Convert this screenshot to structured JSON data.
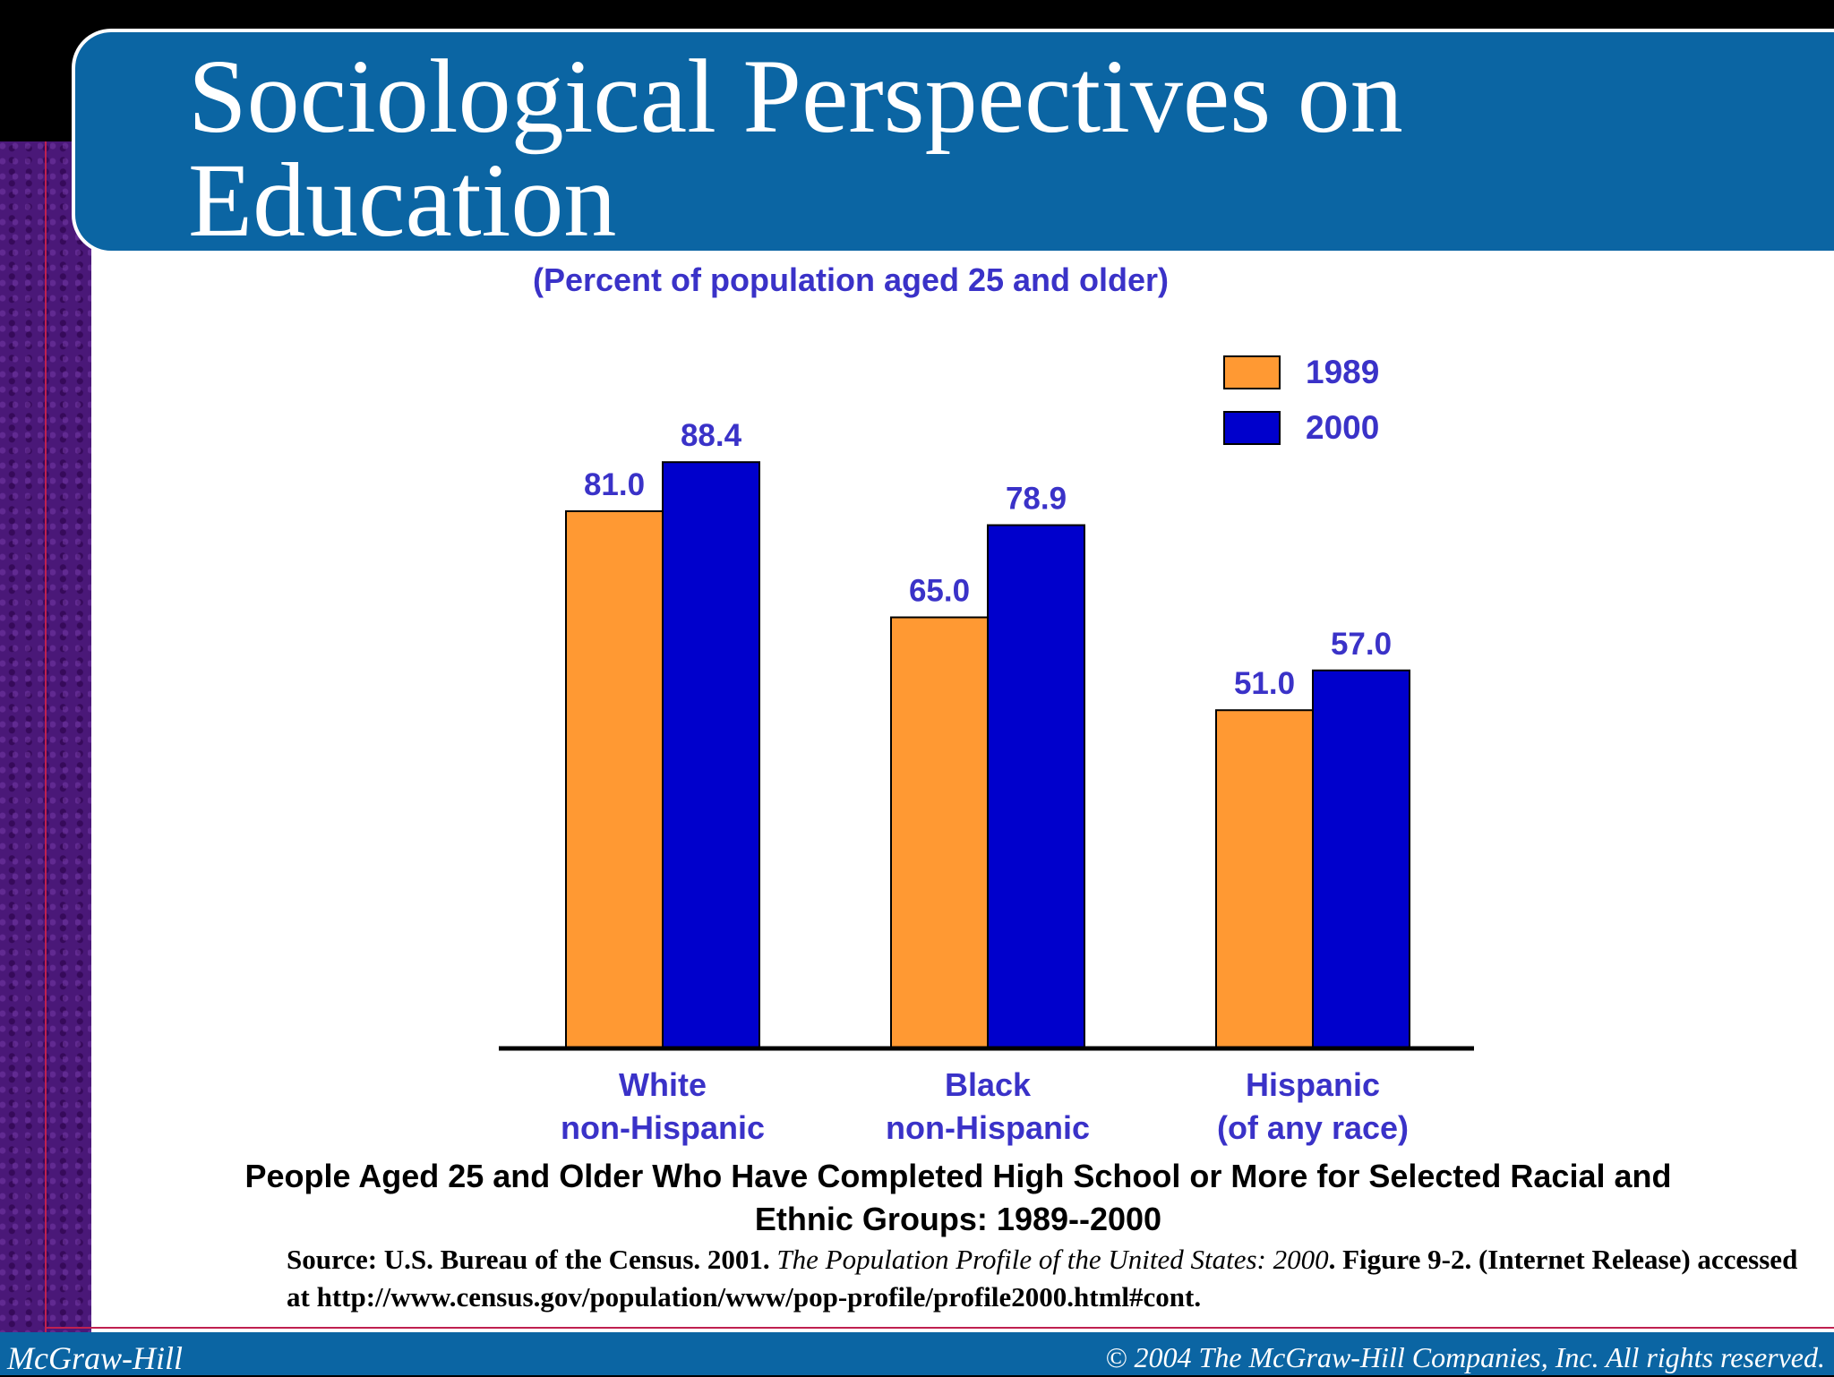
{
  "slide": {
    "title": "Sociological Perspectives on Education",
    "footer_left": "McGraw-Hill",
    "footer_right": "© 2004 The McGraw-Hill Companies, Inc. All rights reserved."
  },
  "colors": {
    "series_1989": "#ff9933",
    "series_2000": "#0000cc",
    "label_text": "#3a32c8",
    "title_bar": "#0b65a3"
  },
  "chart_data": {
    "type": "bar",
    "subtitle": "(Percent of population aged 25 and older)",
    "categories": [
      [
        "White",
        "non-Hispanic"
      ],
      [
        "Black",
        "non-Hispanic"
      ],
      [
        "Hispanic",
        "(of any race)"
      ]
    ],
    "series": [
      {
        "name": "1989",
        "values": [
          81.0,
          65.0,
          51.0
        ],
        "labels": [
          "81.0",
          "65.0",
          "51.0"
        ]
      },
      {
        "name": "2000",
        "values": [
          88.4,
          78.9,
          57.0
        ],
        "labels": [
          "88.4",
          "78.9",
          "57.0"
        ]
      }
    ],
    "ylim": [
      0,
      100
    ],
    "legend": "top-right",
    "grid": false,
    "caption": "People Aged 25 and Older Who Have Completed High School or More for Selected Racial and Ethnic Groups: 1989--2000",
    "source_prefix": "Source: U.S. Bureau of the Census. 2001. ",
    "source_italic": "The Population Profile of the United States: 2000",
    "source_suffix": ". Figure 9-2. (Internet Release) accessed at http://www.census.gov/population/www/pop-profile/profile2000.html#cont."
  }
}
